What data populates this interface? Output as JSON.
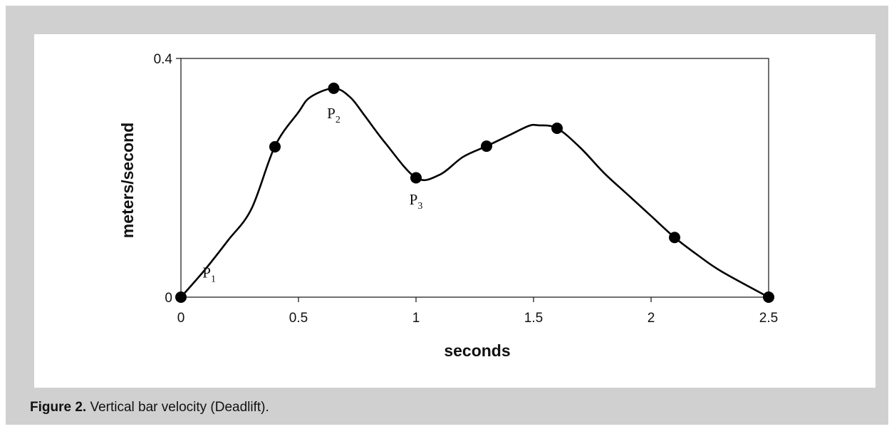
{
  "chart_data": {
    "type": "line",
    "title": "",
    "xlabel": "seconds",
    "ylabel": "meters/second",
    "xlim": [
      0,
      2.5
    ],
    "ylim": [
      0,
      0.4
    ],
    "x_ticks": [
      "0",
      "0.5",
      "1",
      "1.5",
      "2",
      "2.5"
    ],
    "y_ticks": [
      "0",
      "0.4"
    ],
    "grid": false,
    "series": [
      {
        "curve": [
          [
            0,
            0
          ],
          [
            0.1,
            0.045
          ],
          [
            0.2,
            0.095
          ],
          [
            0.3,
            0.148
          ],
          [
            0.4,
            0.253
          ],
          [
            0.5,
            0.31
          ],
          [
            0.55,
            0.335
          ],
          [
            0.65,
            0.35
          ],
          [
            0.72,
            0.335
          ],
          [
            0.78,
            0.305
          ],
          [
            0.87,
            0.258
          ],
          [
            1.0,
            0.2
          ],
          [
            1.1,
            0.205
          ],
          [
            1.2,
            0.235
          ],
          [
            1.3,
            0.253
          ],
          [
            1.4,
            0.272
          ],
          [
            1.48,
            0.287
          ],
          [
            1.52,
            0.288
          ],
          [
            1.6,
            0.283
          ],
          [
            1.7,
            0.25
          ],
          [
            1.8,
            0.208
          ],
          [
            1.9,
            0.172
          ],
          [
            2.0,
            0.136
          ],
          [
            2.1,
            0.1
          ],
          [
            2.2,
            0.07
          ],
          [
            2.3,
            0.043
          ],
          [
            2.5,
            0
          ]
        ],
        "markers": [
          [
            0,
            0
          ],
          [
            0.4,
            0.252
          ],
          [
            0.65,
            0.35
          ],
          [
            1.0,
            0.2
          ],
          [
            1.3,
            0.253
          ],
          [
            1.6,
            0.283
          ],
          [
            2.1,
            0.1
          ],
          [
            2.5,
            0
          ]
        ]
      }
    ],
    "annotations": [
      {
        "main": "P",
        "sub": "1",
        "x": 0.12,
        "y": 0.033
      },
      {
        "main": "P",
        "sub": "2",
        "x": 0.65,
        "y": 0.3
      },
      {
        "main": "P",
        "sub": "3",
        "x": 1.0,
        "y": 0.155
      }
    ]
  },
  "caption": {
    "label": "Figure 2.",
    "text": " Vertical bar velocity (Deadlift)."
  }
}
